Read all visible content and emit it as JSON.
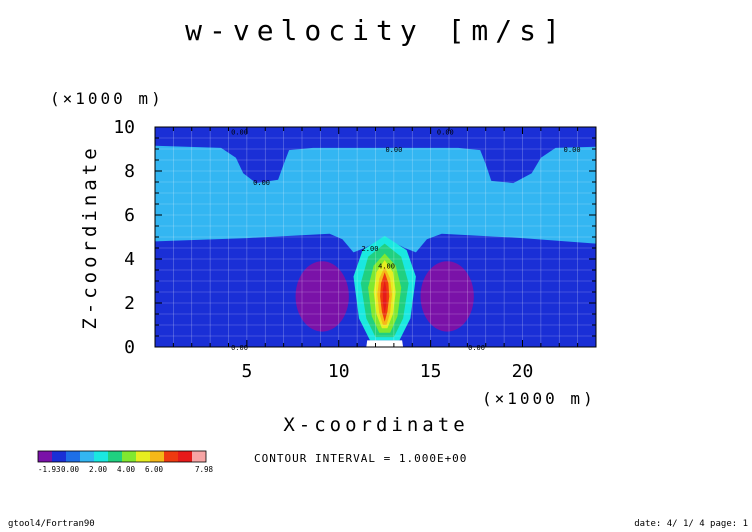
{
  "chart_data": {
    "type": "heatmap",
    "title": "w-velocity [m/s]",
    "xlabel": "X-coordinate",
    "ylabel": "Z-coordinate",
    "x_unit": "(×1000 m)",
    "y_unit": "(×1000 m)",
    "xlim": [
      0,
      24
    ],
    "ylim": [
      0,
      10
    ],
    "x_ticks": [
      5,
      10,
      15,
      20
    ],
    "y_ticks": [
      0,
      2,
      4,
      6,
      8,
      10
    ],
    "contour_labels": [
      {
        "text": "0.00",
        "x": 4.6,
        "z": 9.8
      },
      {
        "text": "0.00",
        "x": 15.8,
        "z": 9.8
      },
      {
        "text": "0.00",
        "x": 13.0,
        "z": 9.0
      },
      {
        "text": "0.00",
        "x": 22.7,
        "z": 9.0
      },
      {
        "text": "0.00",
        "x": 5.8,
        "z": 7.5
      },
      {
        "text": "2.00",
        "x": 11.7,
        "z": 4.5
      },
      {
        "text": "4.00",
        "x": 12.6,
        "z": 3.7
      },
      {
        "text": "0.00",
        "x": 4.6,
        "z": 0.0
      },
      {
        "text": "0.00",
        "x": 17.5,
        "z": 0.0
      }
    ],
    "field_description": {
      "background_min_region_value": 0.0,
      "updraft_center_x": 12.5,
      "updraft_peak_z": 2.5,
      "updraft_max": 7.98,
      "downdraft_centers_x": [
        9.2,
        15.8
      ],
      "downdraft_center_z": 2.3,
      "field_min": -1.93
    },
    "colorbar": {
      "colors": [
        "#7a12a8",
        "#1a2fd6",
        "#1e6fe6",
        "#33b6f2",
        "#1ae8e0",
        "#20d080",
        "#80e830",
        "#e6ee20",
        "#f5b818",
        "#ee3a10",
        "#e61a1a",
        "#f7a5a5"
      ],
      "tick_labels": [
        "-1.93",
        "0.00",
        "2.00",
        "4.00",
        "6.00",
        "7.98"
      ]
    },
    "contour_interval_text": "CONTOUR INTERVAL = 1.000E+00"
  },
  "footer": {
    "left": "gtool4/Fortran90",
    "right": "date: 4/ 1/ 4 page: 1"
  }
}
